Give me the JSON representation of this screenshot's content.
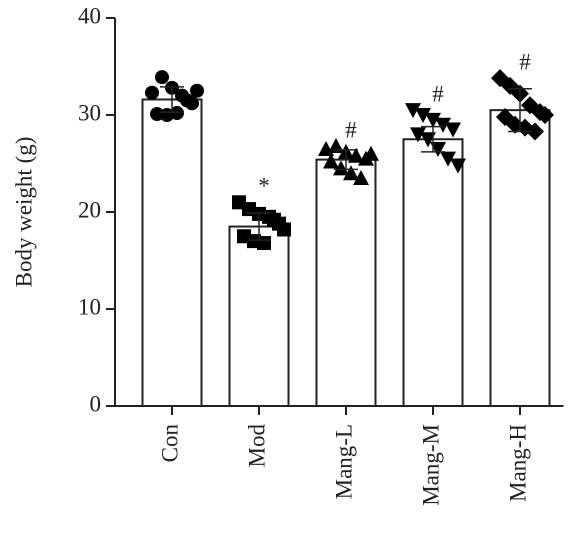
{
  "chart_data": {
    "type": "bar",
    "ylabel": "Body weight (g)",
    "categories": [
      "Con",
      "Mod",
      "Mang-L",
      "Mang-M",
      "Mang-H"
    ],
    "values": [
      31.6,
      18.5,
      25.4,
      27.5,
      30.5
    ],
    "errors": [
      1.3,
      1.4,
      1.0,
      1.3,
      2.2
    ],
    "points": [
      [
        32.3,
        33.9,
        32.8,
        32.0,
        31.2,
        30.1,
        30.0,
        30.2,
        31.5,
        32.5
      ],
      [
        21.0,
        20.3,
        19.8,
        19.5,
        18.8,
        17.5,
        17.0,
        16.8,
        19.2,
        18.2
      ],
      [
        26.5,
        26.8,
        26.2,
        25.8,
        25.5,
        25.2,
        24.5,
        24.0,
        23.5,
        26.0
      ],
      [
        30.5,
        30.0,
        29.5,
        29.0,
        28.5,
        28.0,
        27.5,
        26.5,
        25.5,
        24.8
      ],
      [
        33.8,
        33.0,
        32.2,
        31.0,
        30.3,
        29.8,
        29.0,
        28.7,
        28.3,
        30.0
      ]
    ],
    "markers": [
      "circle",
      "square",
      "triangle-up",
      "triangle-down",
      "diamond"
    ],
    "annotations": [
      null,
      "*",
      "#",
      "#",
      "#"
    ],
    "color": "#ffffff",
    "marker_color": "#000000",
    "ylim": [
      0,
      40
    ],
    "yticks": [
      0,
      10,
      20,
      30,
      40
    ]
  }
}
